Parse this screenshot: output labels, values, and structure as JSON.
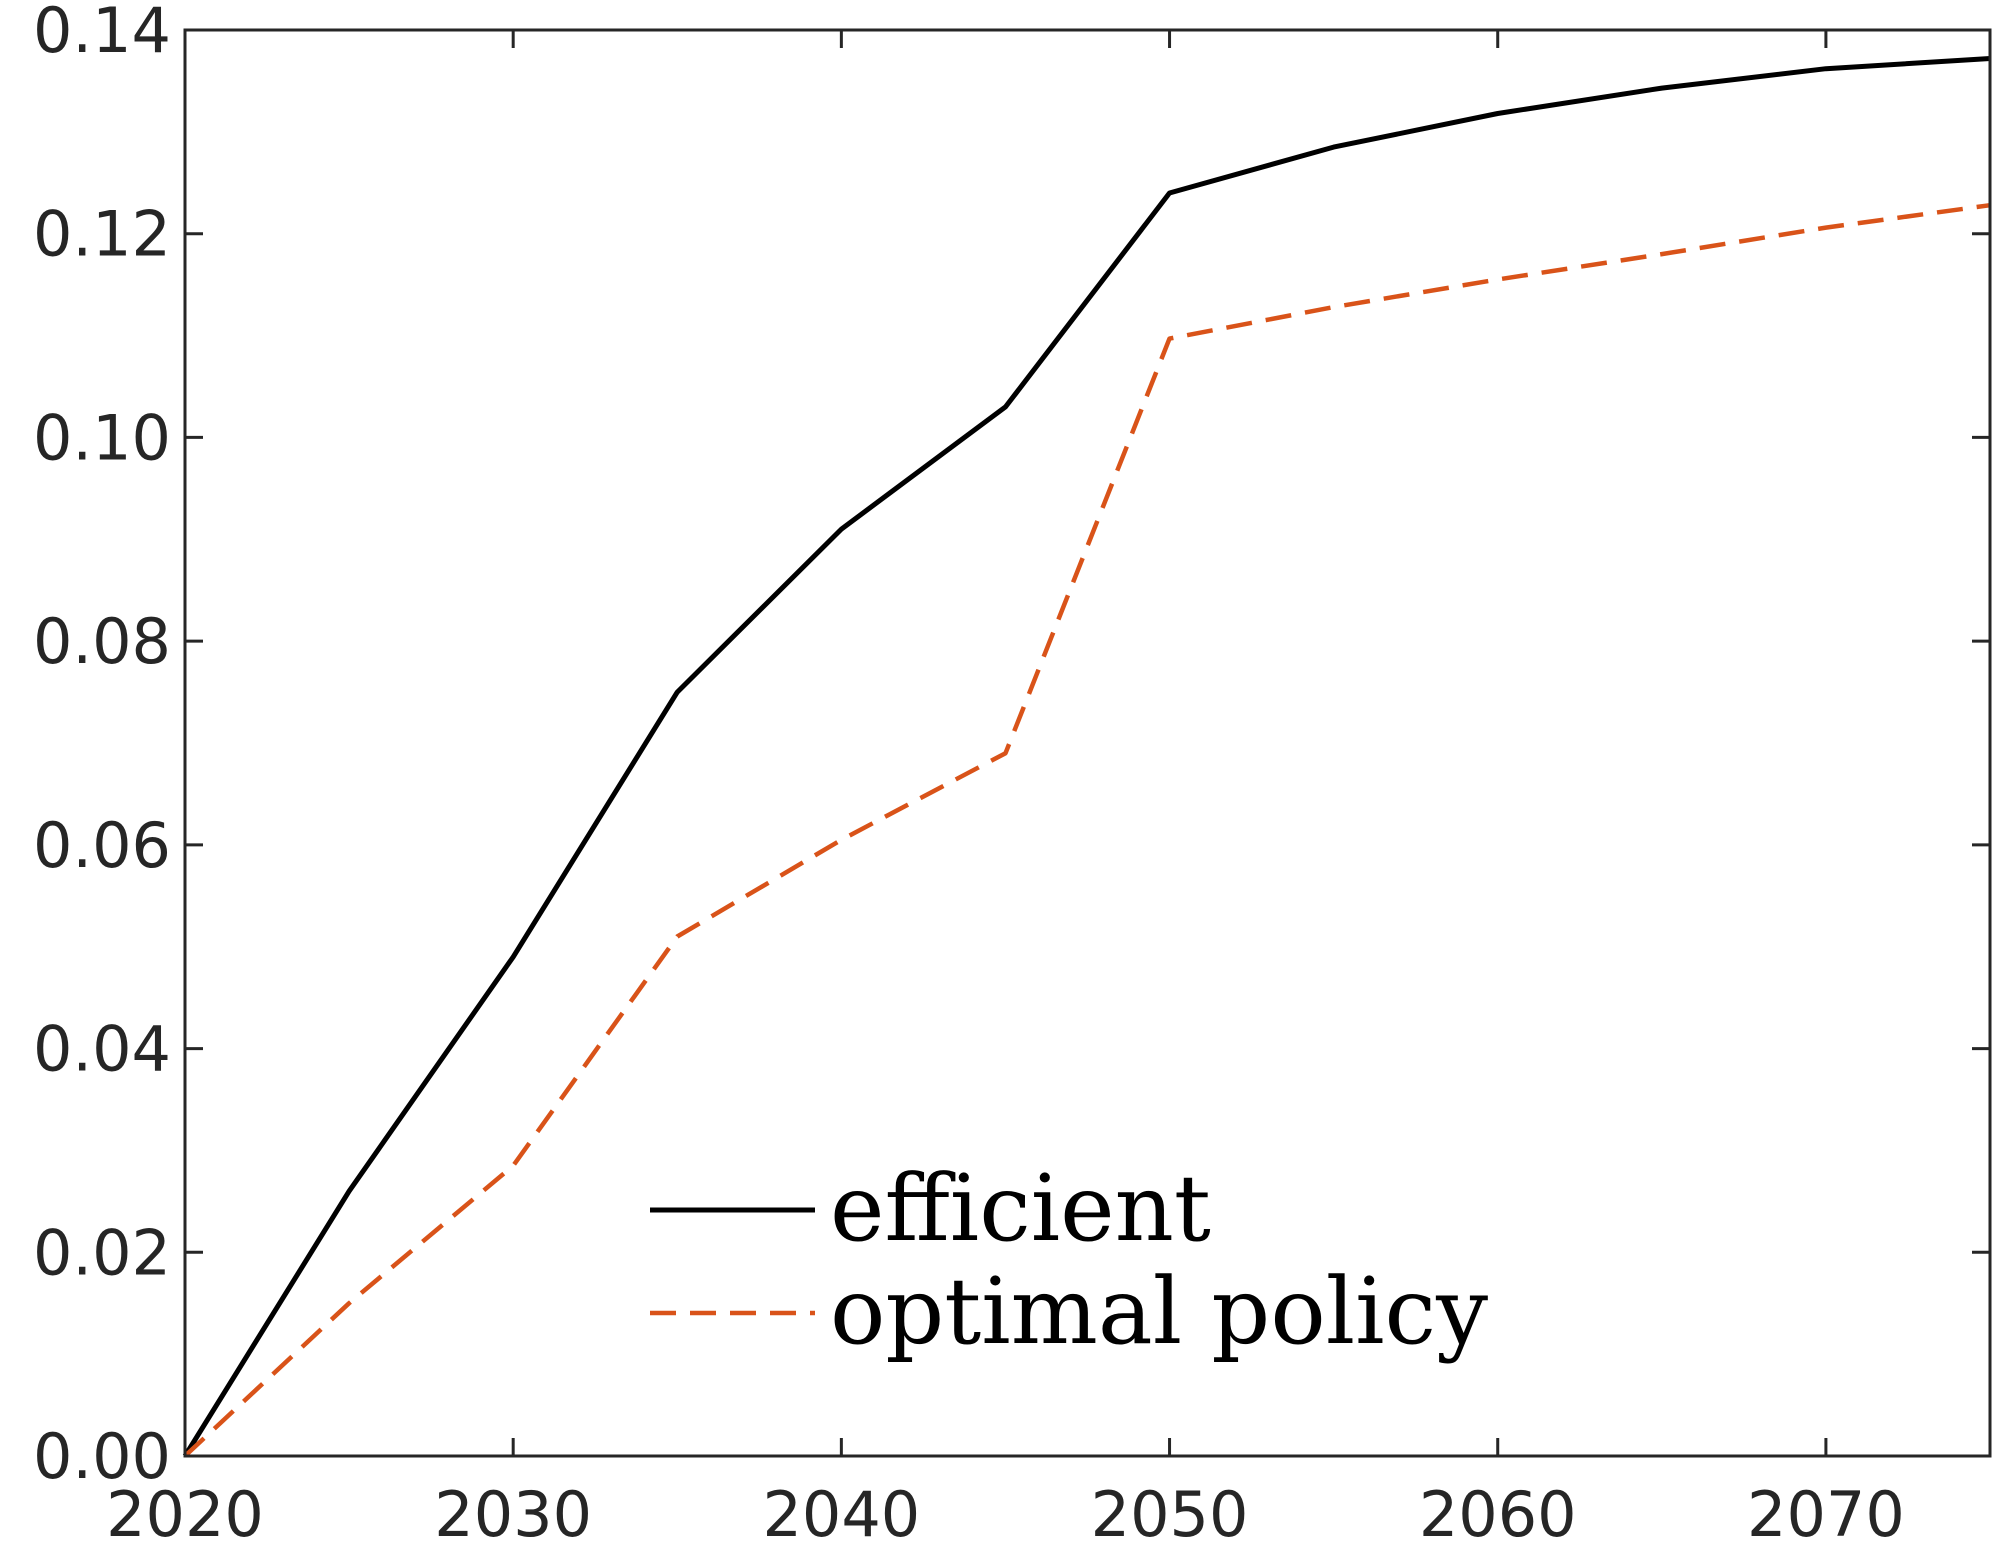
{
  "chart_data": {
    "type": "line",
    "title": "",
    "xlabel": "",
    "ylabel": "",
    "xlim": [
      2020,
      2075
    ],
    "ylim": [
      0.0,
      0.14
    ],
    "x_ticks": [
      "2020",
      "2030",
      "2040",
      "2050",
      "2060",
      "2070"
    ],
    "y_ticks": [
      "0.00",
      "0.02",
      "0.04",
      "0.06",
      "0.08",
      "0.10",
      "0.12",
      "0.14"
    ],
    "grid": false,
    "legend_position": "bottom-center",
    "x": [
      2020,
      2025,
      2030,
      2035,
      2040,
      2045,
      2050,
      2055,
      2060,
      2065,
      2070,
      2075
    ],
    "series": [
      {
        "name": "efficient",
        "color": "#000000",
        "style": "solid",
        "values": [
          0.0,
          0.026,
          0.049,
          0.075,
          0.091,
          0.103,
          0.124,
          0.1285,
          0.1318,
          0.1343,
          0.1362,
          0.1372
        ]
      },
      {
        "name": "optimal policy",
        "color": "#D95319",
        "style": "dashed",
        "values": [
          0.0,
          0.015,
          0.0285,
          0.051,
          0.0605,
          0.069,
          0.1097,
          0.1128,
          0.1155,
          0.118,
          0.1206,
          0.1228
        ]
      }
    ]
  }
}
